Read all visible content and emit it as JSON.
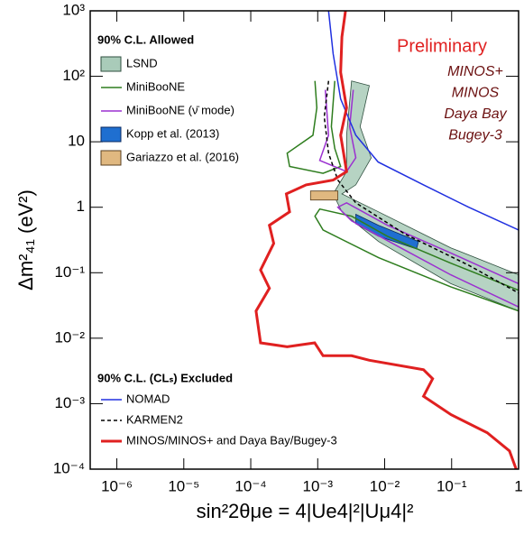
{
  "chart_data": {
    "type": "line",
    "xscale": "log",
    "yscale": "log",
    "xlabel": "sin²2θμe = 4|Ue4|²|Uμ4|²",
    "ylabel": "Δm²₄₁ (eV²)",
    "xlim": [
      4e-07,
      1
    ],
    "ylim": [
      0.0001,
      1000
    ],
    "xticks": [
      {
        "value": 1e-06,
        "label": "10⁻⁶"
      },
      {
        "value": 1e-05,
        "label": "10⁻⁵"
      },
      {
        "value": 0.0001,
        "label": "10⁻⁴"
      },
      {
        "value": 0.001,
        "label": "10⁻³"
      },
      {
        "value": 0.01,
        "label": "10⁻²"
      },
      {
        "value": 0.1,
        "label": "10⁻¹"
      },
      1
    ],
    "yticks": [
      {
        "value": 0.0001,
        "label": "10⁻⁴"
      },
      {
        "value": 0.001,
        "label": "10⁻³"
      },
      {
        "value": 0.01,
        "label": "10⁻²"
      },
      {
        "value": 0.1,
        "label": "10⁻¹"
      },
      1,
      10,
      {
        "value": 100,
        "label": "10²"
      },
      {
        "value": 1000,
        "label": "10³"
      }
    ],
    "grid": false,
    "annotations": {
      "preliminary": "Preliminary",
      "experiments": [
        "MINOS+",
        "MINOS",
        "Daya Bay",
        "Bugey-3"
      ]
    },
    "groups": [
      {
        "title": "90% C.L. Allowed",
        "series": [
          {
            "name": "LSND",
            "style": "fill",
            "color": "#a9cbb9",
            "edgecolor": "#2f4f3f",
            "x": [
              0.0032,
              0.0059,
              0.0043,
              0.0063,
              0.0037,
              0.0023,
              0.0081,
              0.097,
              1,
              1,
              0.097,
              0.0081,
              0.0023,
              0.0017,
              0.0027,
              0.0027
            ],
            "y": [
              85,
              72,
              17,
              5.7,
              2.2,
              1.6,
              0.85,
              0.24,
              0.093,
              0.026,
              0.068,
              0.3,
              0.85,
              1.6,
              3.5,
              12.6
            ]
          },
          {
            "name": "MiniBooNE",
            "style": "solid",
            "color": "#2e7d1e",
            "x": [
              0.00091,
              0.00097,
              0.00085,
              0.00035,
              0.00038,
              0.0012,
              0.0022,
              0.0018,
              0.0016,
              0.0018,
              null,
              1,
              0.097,
              0.011,
              0.0032,
              0.00107,
              0.00091,
              0.0012,
              0.0081,
              0.097,
              1
            ],
            "y": [
              85,
              33,
              12.6,
              6.7,
              4.2,
              3.3,
              4.2,
              7.9,
              17,
              85,
              null,
              0.054,
              0.14,
              0.36,
              0.73,
              0.94,
              0.73,
              0.45,
              0.17,
              0.061,
              0.026
            ]
          },
          {
            "name": "MiniBooNE (ν̄ mode)",
            "style": "solid",
            "color": "#9b30d0",
            "x": [
              0.0013,
              0.00145,
              0.00107,
              0.0027,
              0.0037,
              0.003,
              0.0034,
              null,
              1,
              0.097,
              0.011,
              0.0027,
              0.002,
              0.0032,
              0.015,
              0.097,
              1
            ],
            "y": [
              62,
              12.6,
              5.2,
              3.5,
              5.7,
              17,
              62,
              null,
              0.068,
              0.2,
              0.53,
              1.17,
              1,
              0.62,
              0.26,
              0.093,
              0.03
            ]
          },
          {
            "name": "Kopp et al. (2013)",
            "style": "fill",
            "color": "#1f6fd0",
            "edgecolor": "#0a2a60",
            "x": [
              0.0037,
              0.0081,
              0.032,
              0.03,
              0.0081,
              0.0037
            ],
            "y": [
              0.78,
              0.53,
              0.3,
              0.23,
              0.36,
              0.56
            ]
          },
          {
            "name": "Gariazzo et al. (2016)",
            "style": "fill",
            "color": "#e0b880",
            "edgecolor": "#5a4020",
            "x": [
              0.00078,
              0.002,
              0.002,
              0.00078
            ],
            "y": [
              1.77,
              1.77,
              1.29,
              1.29
            ]
          }
        ]
      },
      {
        "title": "90% C.L. (CLₛ) Excluded",
        "series": [
          {
            "name": "NOMAD",
            "style": "solid",
            "color": "#2030e0",
            "x": [
              0.00145,
              0.0017,
              0.0022,
              0.0037,
              0.008,
              0.038,
              0.18,
              1
            ],
            "y": [
              1000,
              220,
              45,
              12.6,
              4.9,
              2.2,
              1,
              0.45
            ]
          },
          {
            "name": "KARMEN2",
            "style": "dashed",
            "color": "#000000",
            "x": [
              0.00145,
              0.00125,
              0.00145,
              0.002,
              0.0037,
              0.02,
              0.18,
              1
            ],
            "y": [
              85,
              24,
              6.7,
              2.6,
              1.17,
              0.39,
              0.13,
              0.049
            ]
          },
          {
            "name": "MINOS/MINOS+ and Daya Bay/Bugey-3",
            "style": "thick",
            "color": "#e02020",
            "x": [
              0.0026,
              0.0023,
              0.0022,
              0.0027,
              0.0022,
              0.0027,
              0.0017,
              0.00067,
              0.00034,
              0.00038,
              0.00019,
              0.00022,
              0.00014,
              0.00019,
              0.00012,
              0.00014,
              0.00035,
              0.0009,
              0.0012,
              0.0032,
              0.0059,
              0.038,
              0.052,
              0.038,
              0.098,
              0.34,
              0.73,
              0.92
            ],
            "y": [
              1000,
              400,
              115,
              33,
              12.6,
              3.5,
              2.6,
              2.2,
              1.6,
              0.85,
              0.53,
              0.28,
              0.11,
              0.058,
              0.026,
              0.0085,
              0.0074,
              0.0085,
              0.0054,
              0.0054,
              0.0046,
              0.0033,
              0.0024,
              0.0013,
              0.00068,
              0.00036,
              0.00019,
              0.0001
            ]
          }
        ]
      }
    ]
  }
}
